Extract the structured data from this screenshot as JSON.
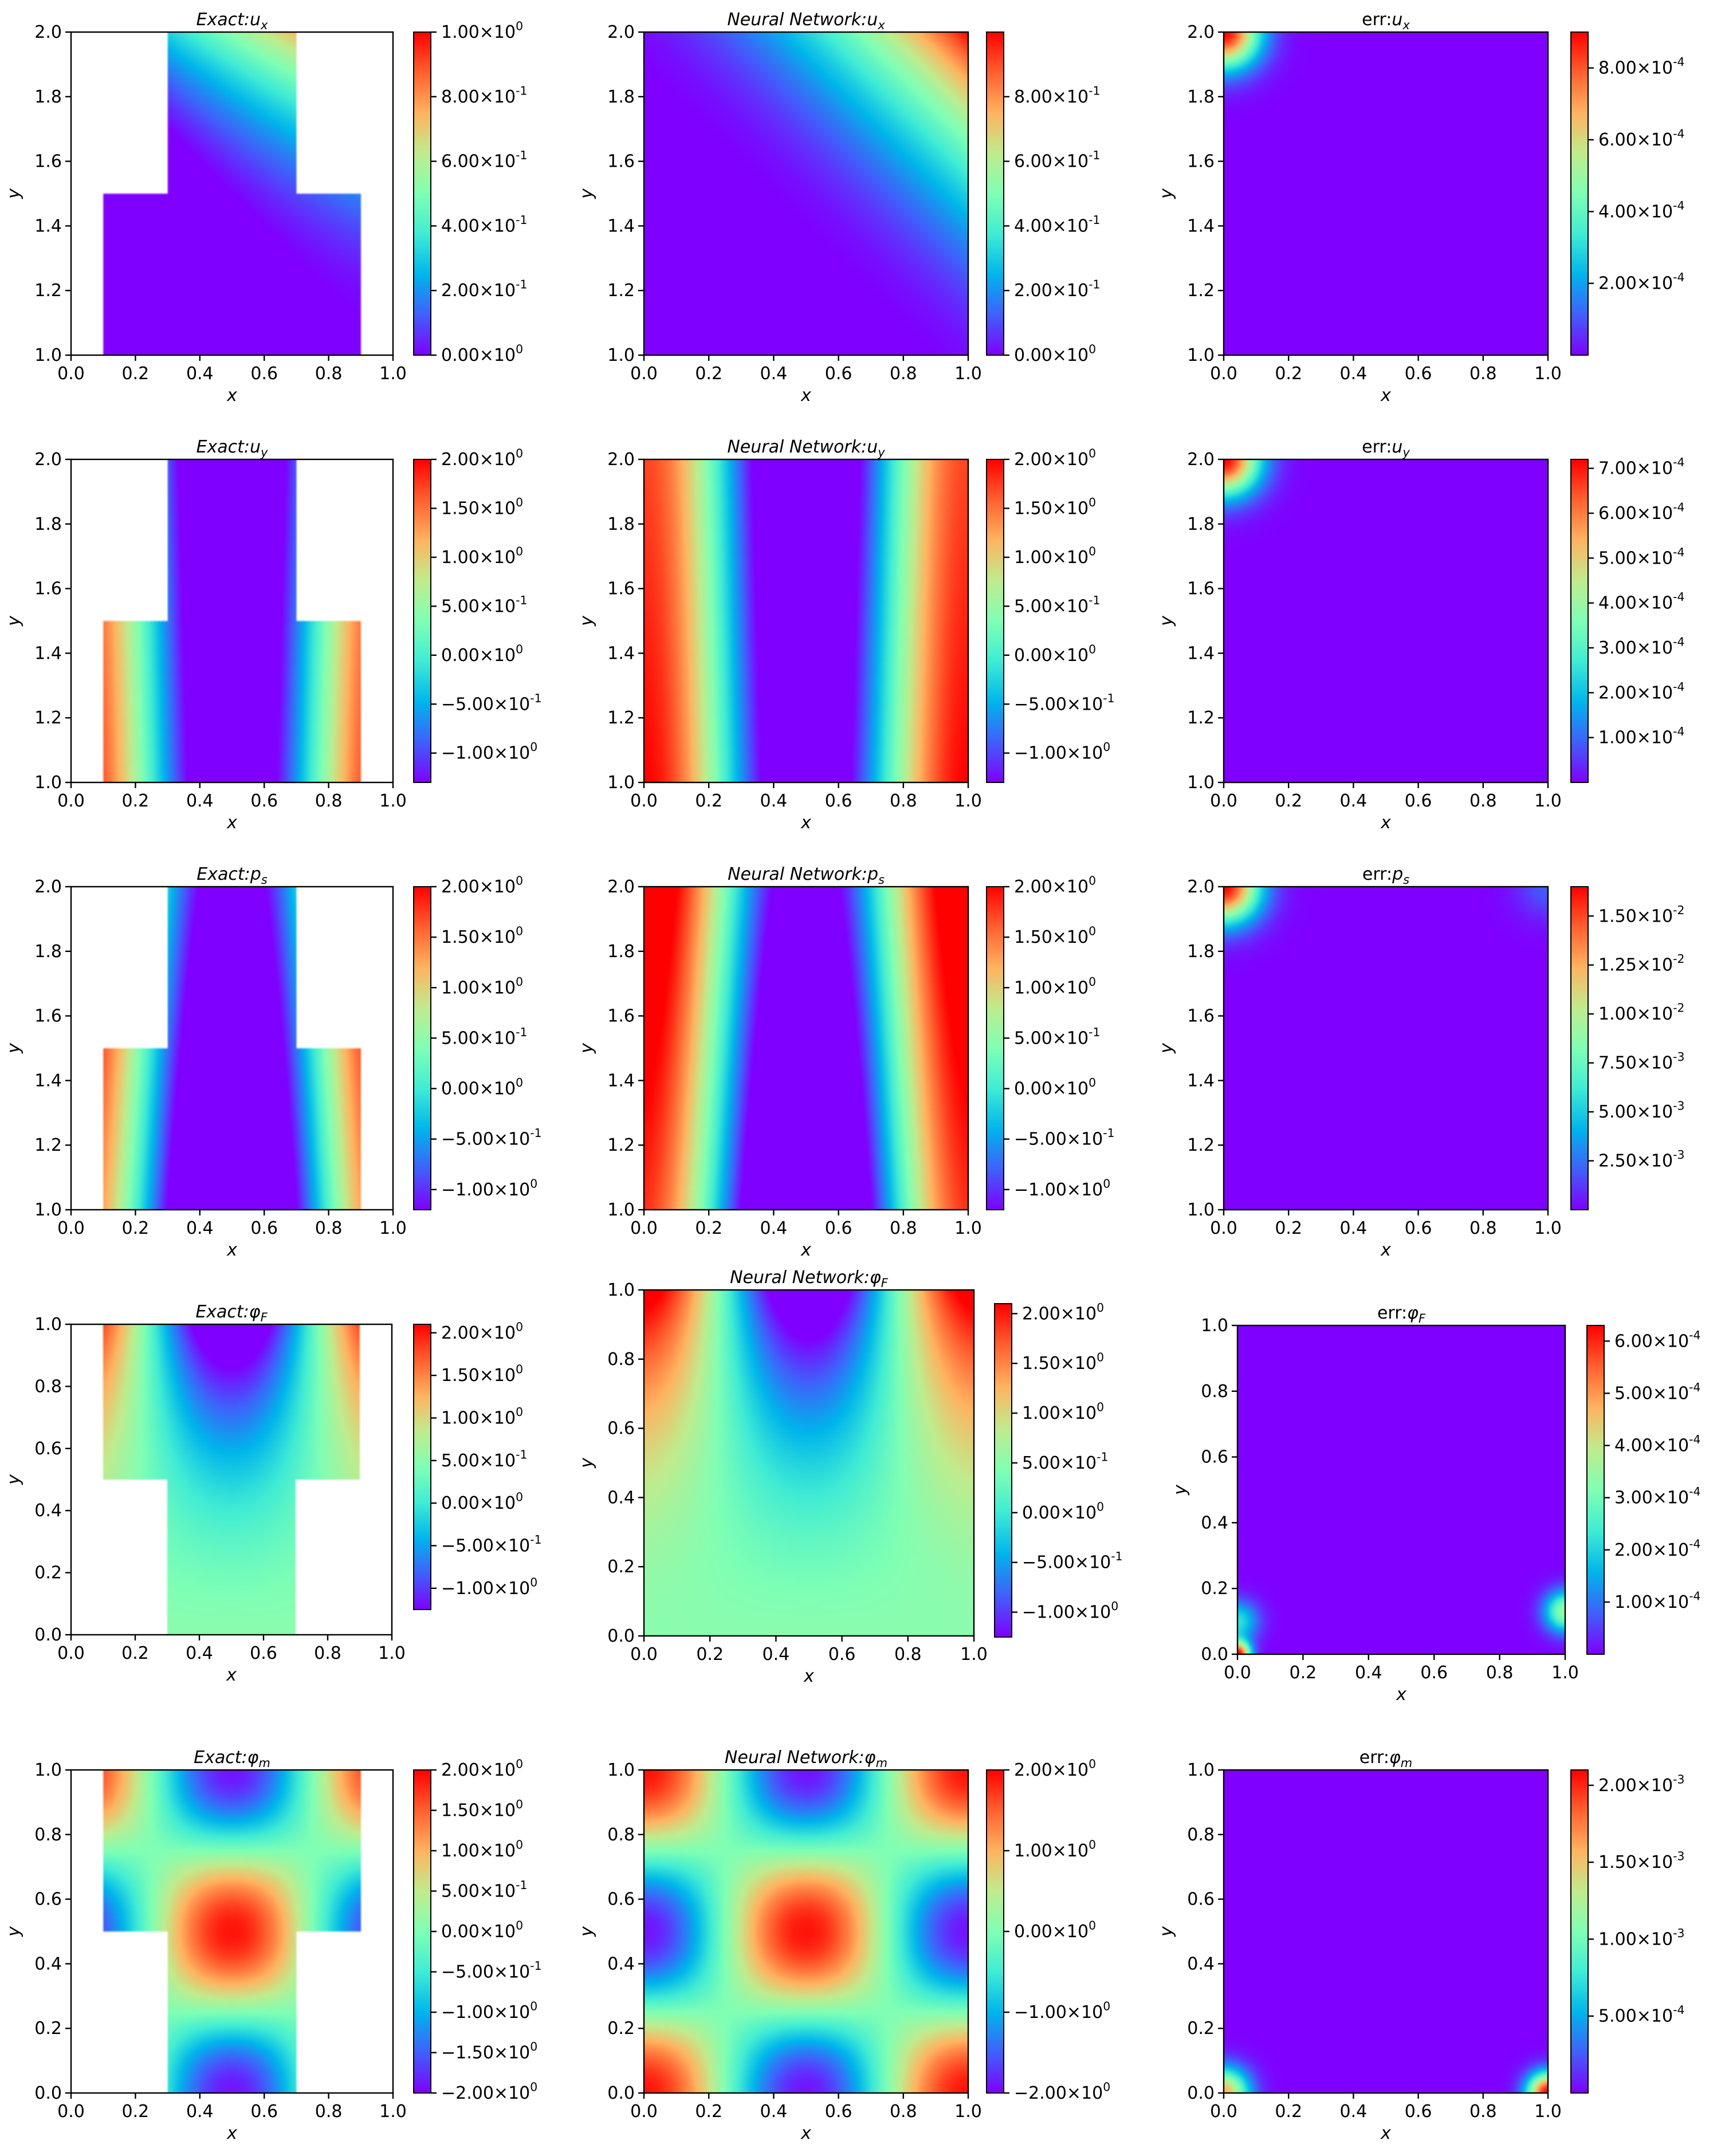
{
  "colors": {
    "cmap": [
      "#7f00ff",
      "#4060fb",
      "#00b5eb",
      "#40ecd4",
      "#80ffb4",
      "#c0eb8d",
      "#ffb360",
      "#ff6030",
      "#ff0000"
    ],
    "text": "#000000",
    "background": "#ffffff"
  },
  "chart_data": [
    {
      "type": "heatmap",
      "panel": "exact-ux",
      "title": "Exact: u_x",
      "title_plain": "Exact:ux",
      "field": "ux_exact",
      "domain": "t_upper",
      "xlabel": "x",
      "ylabel": "y",
      "xlim": [
        0,
        1
      ],
      "ylim": [
        1,
        2
      ],
      "xticks": [
        "0.0",
        "0.2",
        "0.4",
        "0.6",
        "0.8",
        "1.0"
      ],
      "yticks": [
        "1.0",
        "1.2",
        "1.4",
        "1.6",
        "1.8",
        "2.0"
      ],
      "crange": [
        0,
        1
      ],
      "cticks": [
        {
          "value": 0,
          "label": "0.00×10^0"
        },
        {
          "value": 0.2,
          "label": "2.00×10^-1"
        },
        {
          "value": 0.4,
          "label": "4.00×10^-1"
        },
        {
          "value": 0.6,
          "label": "6.00×10^-1"
        },
        {
          "value": 0.8,
          "label": "8.00×10^-1"
        },
        {
          "value": 1.0,
          "label": "1.00×10^0"
        }
      ]
    },
    {
      "type": "heatmap",
      "panel": "nn-ux",
      "title": "Neural Network: u_x",
      "title_plain": "Neural Network:ux",
      "field": "ux_nn",
      "domain": "square",
      "xlabel": "x",
      "ylabel": "y",
      "xlim": [
        0,
        1
      ],
      "ylim": [
        1,
        2
      ],
      "xticks": [
        "0.0",
        "0.2",
        "0.4",
        "0.6",
        "0.8",
        "1.0"
      ],
      "yticks": [
        "1.0",
        "1.2",
        "1.4",
        "1.6",
        "1.8",
        "2.0"
      ],
      "crange": [
        0,
        1
      ],
      "cticks": [
        {
          "value": 0,
          "label": "0.00×10^0"
        },
        {
          "value": 0.2,
          "label": "2.00×10^-1"
        },
        {
          "value": 0.4,
          "label": "4.00×10^-1"
        },
        {
          "value": 0.6,
          "label": "6.00×10^-1"
        },
        {
          "value": 0.8,
          "label": "8.00×10^-1"
        }
      ]
    },
    {
      "type": "heatmap",
      "panel": "err-ux",
      "title": "err: u_x",
      "title_plain": "err:ux",
      "field": "err_tl",
      "domain": "square",
      "xlabel": "x",
      "ylabel": "y",
      "xlim": [
        0,
        1
      ],
      "ylim": [
        1,
        2
      ],
      "xticks": [
        "0.0",
        "0.2",
        "0.4",
        "0.6",
        "0.8",
        "1.0"
      ],
      "yticks": [
        "1.0",
        "1.2",
        "1.4",
        "1.6",
        "1.8",
        "2.0"
      ],
      "crange": [
        0,
        0.0009
      ],
      "cticks": [
        {
          "value": 0.0002,
          "label": "2.00×10^-4"
        },
        {
          "value": 0.0004,
          "label": "4.00×10^-4"
        },
        {
          "value": 0.0006,
          "label": "6.00×10^-4"
        },
        {
          "value": 0.0008,
          "label": "8.00×10^-4"
        }
      ]
    },
    {
      "type": "heatmap",
      "panel": "exact-uy",
      "title": "Exact: u_y",
      "title_plain": "Exact:uy",
      "field": "uy",
      "domain": "t_upper",
      "xlabel": "x",
      "ylabel": "y",
      "xlim": [
        0,
        1
      ],
      "ylim": [
        1,
        2
      ],
      "xticks": [
        "0.0",
        "0.2",
        "0.4",
        "0.6",
        "0.8",
        "1.0"
      ],
      "yticks": [
        "1.0",
        "1.2",
        "1.4",
        "1.6",
        "1.8",
        "2.0"
      ],
      "crange": [
        -1.3,
        2
      ],
      "cticks": [
        {
          "value": -1,
          "label": "−1.00×10^0"
        },
        {
          "value": -0.5,
          "label": "−5.00×10^-1"
        },
        {
          "value": 0,
          "label": "0.00×10^0"
        },
        {
          "value": 0.5,
          "label": "5.00×10^-1"
        },
        {
          "value": 1,
          "label": "1.00×10^0"
        },
        {
          "value": 1.5,
          "label": "1.50×10^0"
        },
        {
          "value": 2,
          "label": "2.00×10^0"
        }
      ]
    },
    {
      "type": "heatmap",
      "panel": "nn-uy",
      "title": "Neural Network: u_y",
      "title_plain": "Neural Network:uy",
      "field": "uy",
      "domain": "square",
      "xlabel": "x",
      "ylabel": "y",
      "xlim": [
        0,
        1
      ],
      "ylim": [
        1,
        2
      ],
      "xticks": [
        "0.0",
        "0.2",
        "0.4",
        "0.6",
        "0.8",
        "1.0"
      ],
      "yticks": [
        "1.0",
        "1.2",
        "1.4",
        "1.6",
        "1.8",
        "2.0"
      ],
      "crange": [
        -1.3,
        2
      ],
      "cticks": [
        {
          "value": -1,
          "label": "−1.00×10^0"
        },
        {
          "value": -0.5,
          "label": "−5.00×10^-1"
        },
        {
          "value": 0,
          "label": "0.00×10^0"
        },
        {
          "value": 0.5,
          "label": "5.00×10^-1"
        },
        {
          "value": 1,
          "label": "1.00×10^0"
        },
        {
          "value": 1.5,
          "label": "1.50×10^0"
        },
        {
          "value": 2,
          "label": "2.00×10^0"
        }
      ]
    },
    {
      "type": "heatmap",
      "panel": "err-uy",
      "title": "err: u_y",
      "title_plain": "err:uy",
      "field": "err_tl",
      "domain": "square",
      "xlabel": "x",
      "ylabel": "y",
      "xlim": [
        0,
        1
      ],
      "ylim": [
        1,
        2
      ],
      "xticks": [
        "0.0",
        "0.2",
        "0.4",
        "0.6",
        "0.8",
        "1.0"
      ],
      "yticks": [
        "1.0",
        "1.2",
        "1.4",
        "1.6",
        "1.8",
        "2.0"
      ],
      "crange": [
        0,
        0.00072
      ],
      "cticks": [
        {
          "value": 0.0001,
          "label": "1.00×10^-4"
        },
        {
          "value": 0.0002,
          "label": "2.00×10^-4"
        },
        {
          "value": 0.0003,
          "label": "3.00×10^-4"
        },
        {
          "value": 0.0004,
          "label": "4.00×10^-4"
        },
        {
          "value": 0.0005,
          "label": "5.00×10^-4"
        },
        {
          "value": 0.0006,
          "label": "6.00×10^-4"
        },
        {
          "value": 0.0007,
          "label": "7.00×10^-4"
        }
      ]
    },
    {
      "type": "heatmap",
      "panel": "exact-ps",
      "title": "Exact: p_s",
      "title_plain": "Exact:ps",
      "field": "ps",
      "domain": "t_upper",
      "xlabel": "x",
      "ylabel": "y",
      "xlim": [
        0,
        1
      ],
      "ylim": [
        1,
        2
      ],
      "xticks": [
        "0.0",
        "0.2",
        "0.4",
        "0.6",
        "0.8",
        "1.0"
      ],
      "yticks": [
        "1.0",
        "1.2",
        "1.4",
        "1.6",
        "1.8",
        "2.0"
      ],
      "crange": [
        -1.2,
        2
      ],
      "cticks": [
        {
          "value": -1,
          "label": "−1.00×10^0"
        },
        {
          "value": -0.5,
          "label": "−5.00×10^-1"
        },
        {
          "value": 0,
          "label": "0.00×10^0"
        },
        {
          "value": 0.5,
          "label": "5.00×10^-1"
        },
        {
          "value": 1,
          "label": "1.00×10^0"
        },
        {
          "value": 1.5,
          "label": "1.50×10^0"
        },
        {
          "value": 2,
          "label": "2.00×10^0"
        }
      ]
    },
    {
      "type": "heatmap",
      "panel": "nn-ps",
      "title": "Neural Network: p_s",
      "title_plain": "Neural Network:ps",
      "field": "ps",
      "domain": "square",
      "xlabel": "x",
      "ylabel": "y",
      "xlim": [
        0,
        1
      ],
      "ylim": [
        1,
        2
      ],
      "xticks": [
        "0.0",
        "0.2",
        "0.4",
        "0.6",
        "0.8",
        "1.0"
      ],
      "yticks": [
        "1.0",
        "1.2",
        "1.4",
        "1.6",
        "1.8",
        "2.0"
      ],
      "crange": [
        -1.2,
        2
      ],
      "cticks": [
        {
          "value": -1,
          "label": "−1.00×10^0"
        },
        {
          "value": -0.5,
          "label": "−5.00×10^-1"
        },
        {
          "value": 0,
          "label": "0.00×10^0"
        },
        {
          "value": 0.5,
          "label": "5.00×10^-1"
        },
        {
          "value": 1,
          "label": "1.00×10^0"
        },
        {
          "value": 1.5,
          "label": "1.50×10^0"
        },
        {
          "value": 2,
          "label": "2.00×10^0"
        }
      ]
    },
    {
      "type": "heatmap",
      "panel": "err-ps",
      "title": "err: p_s",
      "title_plain": "err:ps",
      "field": "err_tlr",
      "domain": "square",
      "xlabel": "x",
      "ylabel": "y",
      "xlim": [
        0,
        1
      ],
      "ylim": [
        1,
        2
      ],
      "xticks": [
        "0.0",
        "0.2",
        "0.4",
        "0.6",
        "0.8",
        "1.0"
      ],
      "yticks": [
        "1.0",
        "1.2",
        "1.4",
        "1.6",
        "1.8",
        "2.0"
      ],
      "crange": [
        0,
        0.0165
      ],
      "cticks": [
        {
          "value": 0.0025,
          "label": "2.50×10^-3"
        },
        {
          "value": 0.005,
          "label": "5.00×10^-3"
        },
        {
          "value": 0.0075,
          "label": "7.50×10^-3"
        },
        {
          "value": 0.01,
          "label": "1.00×10^-2"
        },
        {
          "value": 0.0125,
          "label": "1.25×10^-2"
        },
        {
          "value": 0.015,
          "label": "1.50×10^-2"
        }
      ]
    },
    {
      "type": "heatmap",
      "panel": "exact-phiF",
      "title": "Exact: φ_F",
      "title_plain": "Exact:φF",
      "field": "phiF",
      "domain": "t_lower",
      "xlabel": "x",
      "ylabel": "y",
      "xlim": [
        0,
        1
      ],
      "ylim": [
        0,
        1
      ],
      "xticks": [
        "0.0",
        "0.2",
        "0.4",
        "0.6",
        "0.8",
        "1.0"
      ],
      "yticks": [
        "0.0",
        "0.2",
        "0.4",
        "0.6",
        "0.8",
        "1.0"
      ],
      "crange": [
        -1.25,
        2.1
      ],
      "cticks": [
        {
          "value": -1,
          "label": "−1.00×10^0"
        },
        {
          "value": -0.5,
          "label": "−5.00×10^-1"
        },
        {
          "value": 0,
          "label": "0.00×10^0"
        },
        {
          "value": 0.5,
          "label": "5.00×10^-1"
        },
        {
          "value": 1,
          "label": "1.00×10^0"
        },
        {
          "value": 1.5,
          "label": "1.50×10^0"
        },
        {
          "value": 2,
          "label": "2.00×10^0"
        }
      ]
    },
    {
      "type": "heatmap",
      "panel": "nn-phiF",
      "title": "Neural Network: φ_F",
      "title_plain": "Neural Network:φF",
      "field": "phiF",
      "domain": "square",
      "xlabel": "x",
      "ylabel": "y",
      "xlim": [
        0,
        1
      ],
      "ylim": [
        0,
        1
      ],
      "xticks": [
        "0.0",
        "0.2",
        "0.4",
        "0.6",
        "0.8",
        "1.0"
      ],
      "yticks": [
        "0.0",
        "0.2",
        "0.4",
        "0.6",
        "0.8",
        "1.0"
      ],
      "crange": [
        -1.25,
        2.1
      ],
      "cticks": [
        {
          "value": -1,
          "label": "−1.00×10^0"
        },
        {
          "value": -0.5,
          "label": "−5.00×10^-1"
        },
        {
          "value": 0,
          "label": "0.00×10^0"
        },
        {
          "value": 0.5,
          "label": "5.00×10^-1"
        },
        {
          "value": 1,
          "label": "1.00×10^0"
        },
        {
          "value": 1.5,
          "label": "1.50×10^0"
        },
        {
          "value": 2,
          "label": "2.00×10^0"
        }
      ]
    },
    {
      "type": "heatmap",
      "panel": "err-phiF",
      "title": "err: φ_F",
      "title_plain": "err:φF",
      "field": "err_bottom",
      "domain": "square",
      "xlabel": "x",
      "ylabel": "y",
      "xlim": [
        0,
        1
      ],
      "ylim": [
        0,
        1
      ],
      "xticks": [
        "0.0",
        "0.2",
        "0.4",
        "0.6",
        "0.8",
        "1.0"
      ],
      "yticks": [
        "0.0",
        "0.2",
        "0.4",
        "0.6",
        "0.8",
        "1.0"
      ],
      "crange": [
        0,
        0.00063
      ],
      "cticks": [
        {
          "value": 0.0001,
          "label": "1.00×10^-4"
        },
        {
          "value": 0.0002,
          "label": "2.00×10^-4"
        },
        {
          "value": 0.0003,
          "label": "3.00×10^-4"
        },
        {
          "value": 0.0004,
          "label": "4.00×10^-4"
        },
        {
          "value": 0.0005,
          "label": "5.00×10^-4"
        },
        {
          "value": 0.0006,
          "label": "6.00×10^-4"
        }
      ]
    },
    {
      "type": "heatmap",
      "panel": "exact-phim",
      "title": "Exact: φ_m",
      "title_plain": "Exact:φm",
      "field": "phim",
      "domain": "t_lower",
      "xlabel": "x",
      "ylabel": "y",
      "xlim": [
        0,
        1
      ],
      "ylim": [
        0,
        1
      ],
      "xticks": [
        "0.0",
        "0.2",
        "0.4",
        "0.6",
        "0.8",
        "1.0"
      ],
      "yticks": [
        "0.0",
        "0.2",
        "0.4",
        "0.6",
        "0.8",
        "1.0"
      ],
      "crange": [
        -2,
        2
      ],
      "cticks": [
        {
          "value": -2,
          "label": "−2.00×10^0"
        },
        {
          "value": -1.5,
          "label": "−1.50×10^0"
        },
        {
          "value": -1,
          "label": "−1.00×10^0"
        },
        {
          "value": -0.5,
          "label": "−5.00×10^-1"
        },
        {
          "value": 0,
          "label": "0.00×10^0"
        },
        {
          "value": 0.5,
          "label": "5.00×10^-1"
        },
        {
          "value": 1,
          "label": "1.00×10^0"
        },
        {
          "value": 1.5,
          "label": "1.50×10^0"
        },
        {
          "value": 2,
          "label": "2.00×10^0"
        }
      ]
    },
    {
      "type": "heatmap",
      "panel": "nn-phim",
      "title": "Neural Network: φ_m",
      "title_plain": "Neural Network:φm",
      "field": "phim",
      "domain": "square",
      "xlabel": "x",
      "ylabel": "y",
      "xlim": [
        0,
        1
      ],
      "ylim": [
        0,
        1
      ],
      "xticks": [
        "0.0",
        "0.2",
        "0.4",
        "0.6",
        "0.8",
        "1.0"
      ],
      "yticks": [
        "0.0",
        "0.2",
        "0.4",
        "0.6",
        "0.8",
        "1.0"
      ],
      "crange": [
        -2,
        2
      ],
      "cticks": [
        {
          "value": -2,
          "label": "−2.00×10^0"
        },
        {
          "value": -1,
          "label": "−1.00×10^0"
        },
        {
          "value": 0,
          "label": "0.00×10^0"
        },
        {
          "value": 1,
          "label": "1.00×10^0"
        },
        {
          "value": 2,
          "label": "2.00×10^0"
        }
      ]
    },
    {
      "type": "heatmap",
      "panel": "err-phim",
      "title": "err: φ_m",
      "title_plain": "err:φm",
      "field": "err_bcorners",
      "domain": "square",
      "xlabel": "x",
      "ylabel": "y",
      "xlim": [
        0,
        1
      ],
      "ylim": [
        0,
        1
      ],
      "xticks": [
        "0.0",
        "0.2",
        "0.4",
        "0.6",
        "0.8",
        "1.0"
      ],
      "yticks": [
        "0.0",
        "0.2",
        "0.4",
        "0.6",
        "0.8",
        "1.0"
      ],
      "crange": [
        0,
        0.0021
      ],
      "cticks": [
        {
          "value": 0.0005,
          "label": "5.00×10^-4"
        },
        {
          "value": 0.001,
          "label": "1.00×10^-3"
        },
        {
          "value": 0.0015,
          "label": "1.50×10^-3"
        },
        {
          "value": 0.002,
          "label": "2.00×10^-3"
        }
      ]
    }
  ]
}
